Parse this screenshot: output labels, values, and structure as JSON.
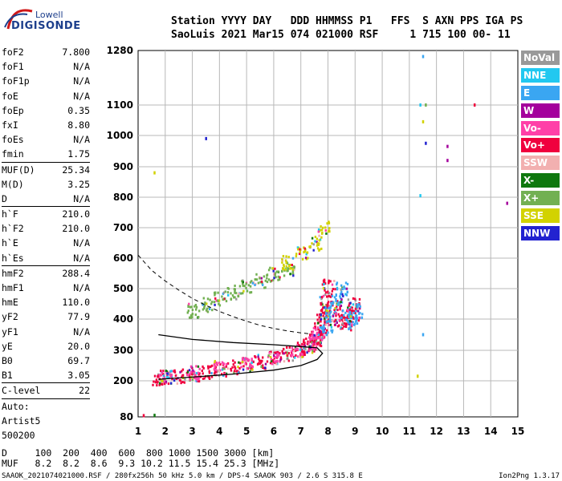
{
  "logo": {
    "line1": "Lowell",
    "line2": "DIGISONDE"
  },
  "header": {
    "line1": "Station YYYY DAY   DDD HHMMSS P1   FFS  S AXN PPS IGA PS",
    "line2": "SaoLuis 2021 Mar15 074 021000 RSF     1 715 100 00- 11"
  },
  "params": [
    {
      "name": "foF2",
      "value": "7.800"
    },
    {
      "name": "foF1",
      "value": "N/A"
    },
    {
      "name": "foF1p",
      "value": "N/A"
    },
    {
      "name": "foE",
      "value": "N/A"
    },
    {
      "name": "foEp",
      "value": "0.35"
    },
    {
      "name": "fxI",
      "value": "8.80"
    },
    {
      "name": "foEs",
      "value": "N/A"
    },
    {
      "name": "fmin",
      "value": "1.75"
    },
    {
      "sep": true
    },
    {
      "name": "MUF(D)",
      "value": "25.34"
    },
    {
      "name": "M(D)",
      "value": "3.25"
    },
    {
      "name": "D",
      "value": "N/A"
    },
    {
      "sep": true
    },
    {
      "name": "h`F",
      "value": "210.0"
    },
    {
      "name": "h`F2",
      "value": "210.0"
    },
    {
      "name": "h`E",
      "value": "N/A"
    },
    {
      "name": "h`Es",
      "value": "N/A"
    },
    {
      "sep": true
    },
    {
      "name": "hmF2",
      "value": "288.4"
    },
    {
      "name": "hmF1",
      "value": "N/A"
    },
    {
      "name": "hmE",
      "value": "110.0"
    },
    {
      "name": "yF2",
      "value": "77.9"
    },
    {
      "name": "yF1",
      "value": "N/A"
    },
    {
      "name": "yE",
      "value": "20.0"
    },
    {
      "name": "B0",
      "value": "69.7"
    },
    {
      "name": "B1",
      "value": "3.05"
    },
    {
      "sep": true
    },
    {
      "name": "C-level",
      "value": "22"
    },
    {
      "sep": true
    },
    {
      "name": "Auto:",
      "value": ""
    },
    {
      "name": "Artist5",
      "value": ""
    },
    {
      "name": "500200",
      "value": ""
    }
  ],
  "legend": [
    {
      "label": "NoVal",
      "color": "#999999"
    },
    {
      "label": "NNE",
      "color": "#22c8f0"
    },
    {
      "label": "E",
      "color": "#3aa6f2"
    },
    {
      "label": "W",
      "color": "#a4009c"
    },
    {
      "label": "Vo-",
      "color": "#ff40a8"
    },
    {
      "label": "Vo+",
      "color": "#f0003e"
    },
    {
      "label": "SSW",
      "color": "#f2b0b0"
    },
    {
      "label": "X-",
      "color": "#0e780e"
    },
    {
      "label": "X+",
      "color": "#72b052"
    },
    {
      "label": "SSE",
      "color": "#d2d200"
    },
    {
      "label": "NNW",
      "color": "#2222d0"
    }
  ],
  "muf_table": {
    "row1": "D     100  200  400  600  800 1000 1500 3000 [km]",
    "row2": "MUF   8.2  8.2  8.6  9.3 10.2 11.5 15.4 25.3 [MHz]"
  },
  "footer": "SAAOK_2021074021000.RSF / 280fx256h 50 kHz 5.0 km / DPS-4 SAAOK 903 / 2.6 S 315.8 E",
  "version": "Ion2Png 1.3.17",
  "chart_data": {
    "type": "scatter",
    "title": "",
    "xlabel": "",
    "ylabel": "",
    "xlim": [
      1,
      15
    ],
    "ylim": [
      80,
      1280
    ],
    "y_scale": "nonlinear (ionogram virtual height)",
    "xticks": [
      1,
      2,
      3,
      4,
      5,
      6,
      7,
      8,
      9,
      10,
      11,
      12,
      13,
      14,
      15
    ],
    "yticks": [
      80,
      200,
      300,
      400,
      500,
      600,
      700,
      800,
      900,
      1000,
      1100,
      1280
    ],
    "grid": true,
    "legend_placement": "right",
    "traces": [
      {
        "name": "O-mode F2 trace (Vo+)",
        "color": "#f0003e",
        "x": [
          1.75,
          2.0,
          2.5,
          3.0,
          3.5,
          4.0,
          4.5,
          5.0,
          5.5,
          6.0,
          6.5,
          7.0,
          7.3,
          7.5,
          7.6,
          7.7,
          7.8
        ],
        "y": [
          210,
          213,
          218,
          225,
          232,
          240,
          248,
          257,
          266,
          278,
          290,
          305,
          318,
          335,
          350,
          375,
          400
        ]
      },
      {
        "name": "O-mode F2 trace (Vo-)",
        "color": "#ff40a8",
        "x": [
          2.0,
          3.0,
          4.0,
          5.0,
          6.0,
          6.8,
          7.3,
          7.6
        ],
        "y": [
          218,
          228,
          245,
          262,
          282,
          300,
          325,
          355
        ]
      },
      {
        "name": "Spread-F cloud (Vo+)",
        "color": "#f0003e",
        "x": [
          7.8,
          7.9,
          8.0,
          8.2,
          8.4,
          8.6,
          8.8,
          8.9
        ],
        "y": [
          430,
          470,
          510,
          440,
          400,
          390,
          420,
          450
        ]
      },
      {
        "name": "Spread-F cloud (E)",
        "color": "#3aa6f2",
        "x": [
          7.9,
          8.1,
          8.3,
          8.5,
          8.7,
          8.9,
          9.0
        ],
        "y": [
          380,
          420,
          460,
          500,
          410,
          395,
          430
        ]
      },
      {
        "name": "Multi-hop (2F) echoes",
        "color": "#72b052",
        "x": [
          3.0,
          3.5,
          4.0,
          4.5,
          5.0,
          5.5,
          6.0,
          6.5
        ],
        "y": [
          430,
          450,
          470,
          490,
          510,
          530,
          550,
          570
        ]
      },
      {
        "name": "Upper traces",
        "color": "#d2d200",
        "x": [
          6.5,
          7.0,
          7.5,
          7.8
        ],
        "y": [
          590,
          620,
          650,
          700
        ]
      }
    ],
    "profile": {
      "name": "Electron density profile (solid)",
      "x": [
        1.75,
        3.0,
        4.5,
        6.0,
        7.0,
        7.6,
        7.8,
        7.6,
        7.0,
        6.0,
        4.5,
        3.0,
        1.75
      ],
      "y": [
        205,
        212,
        222,
        235,
        250,
        270,
        290,
        308,
        312,
        318,
        325,
        335,
        350
      ]
    },
    "muf_curve": {
      "name": "MUF curve (dashed)",
      "x": [
        1.0,
        1.5,
        2.0,
        2.5,
        3.0,
        3.5,
        4.0,
        4.5,
        5.0,
        5.5,
        6.0,
        6.5,
        7.0,
        7.4
      ],
      "y": [
        610,
        560,
        525,
        495,
        468,
        445,
        425,
        408,
        393,
        380,
        370,
        362,
        356,
        352
      ]
    },
    "isolated_points": [
      {
        "x": 1.6,
        "y": 880,
        "color": "#d2d200"
      },
      {
        "x": 3.5,
        "y": 990,
        "color": "#2222d0"
      },
      {
        "x": 11.4,
        "y": 1100,
        "color": "#22c8f0"
      },
      {
        "x": 11.6,
        "y": 1100,
        "color": "#72b052"
      },
      {
        "x": 11.5,
        "y": 1045,
        "color": "#d2d200"
      },
      {
        "x": 11.6,
        "y": 975,
        "color": "#2222d0"
      },
      {
        "x": 12.4,
        "y": 965,
        "color": "#a4009c"
      },
      {
        "x": 12.4,
        "y": 920,
        "color": "#a4009c"
      },
      {
        "x": 13.4,
        "y": 1100,
        "color": "#f0003e"
      },
      {
        "x": 14.6,
        "y": 780,
        "color": "#a4009c"
      },
      {
        "x": 11.4,
        "y": 805,
        "color": "#22c8f0"
      },
      {
        "x": 11.5,
        "y": 1260,
        "color": "#3aa6f2"
      },
      {
        "x": 11.5,
        "y": 350,
        "color": "#3aa6f2"
      },
      {
        "x": 11.3,
        "y": 215,
        "color": "#d2d200"
      },
      {
        "x": 1.2,
        "y": 84,
        "color": "#f0003e"
      },
      {
        "x": 1.6,
        "y": 85,
        "color": "#0e780e"
      }
    ]
  }
}
